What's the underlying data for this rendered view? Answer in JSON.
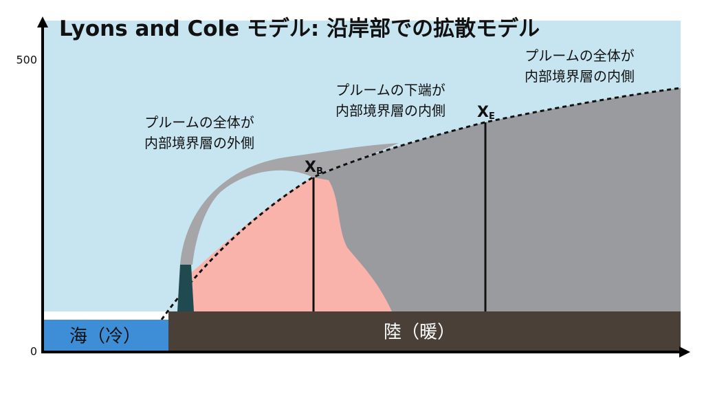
{
  "title": "Lyons and Cole モデル: 沿岸部での拡散モデル",
  "axis": {
    "ticks": [
      500,
      0
    ]
  },
  "annotations": [
    {
      "lines": [
        "プルームの全体が",
        "内部境界層の外側"
      ]
    },
    {
      "lines": [
        "プルームの下端が",
        "内部境界層の内側"
      ]
    },
    {
      "lines": [
        "プルームの全体が",
        "内部境界層の内側"
      ]
    }
  ],
  "markers": [
    {
      "symbol": "X",
      "subscript": "B"
    },
    {
      "symbol": "X",
      "subscript": "E"
    }
  ],
  "regions": {
    "sea": "海（冷）",
    "land": "陸（暖）"
  }
}
